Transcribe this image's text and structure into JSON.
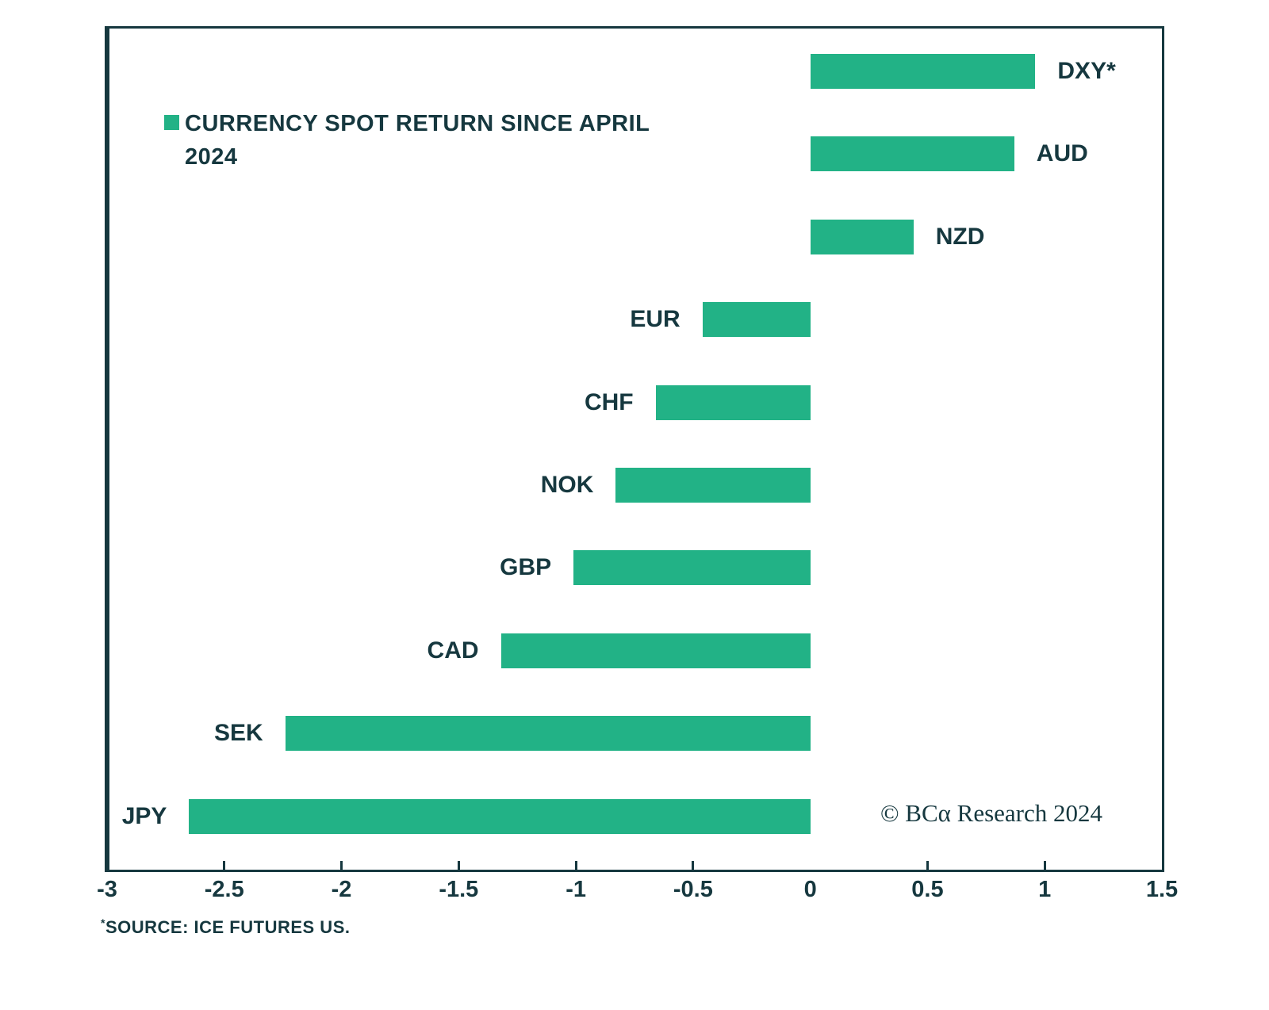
{
  "colors": {
    "bar_green": "#22B286",
    "dark_teal": "#16383F",
    "background": "#FFFFFF"
  },
  "legend": {
    "label": "CURRENCY SPOT RETURN SINCE APRIL 2024"
  },
  "watermark": "© BCα Research 2024",
  "source": {
    "asterisk": "*",
    "text": "SOURCE: ICE FUTURES US."
  },
  "chart_data": {
    "type": "bar",
    "orientation": "horizontal",
    "title": "CURRENCY SPOT RETURN SINCE APRIL 2024",
    "categories": [
      "DXY*",
      "AUD",
      "NZD",
      "EUR",
      "CHF",
      "NOK",
      "GBP",
      "CAD",
      "SEK",
      "JPY"
    ],
    "values": [
      0.96,
      0.87,
      0.44,
      -0.46,
      -0.66,
      -0.83,
      -1.01,
      -1.32,
      -2.24,
      -2.65
    ],
    "xlabel": "",
    "ylabel": "",
    "xlim": [
      -3,
      1.5
    ],
    "xtick_values": [
      -3,
      -2.5,
      -2,
      -1.5,
      -1,
      -0.5,
      0,
      0.5,
      1,
      1.5
    ],
    "xtick_labels": [
      "-3",
      "-2.5",
      "-2",
      "-1.5",
      "-1",
      "-0.5",
      "0",
      "0.5",
      "1",
      "1.5"
    ],
    "interior_tick_marks": [
      -2.5,
      -2,
      -1.5,
      -1,
      -0.5,
      0.5,
      1
    ],
    "grid": false,
    "legend_position": "upper-left-inside",
    "zero_baseline": true
  }
}
